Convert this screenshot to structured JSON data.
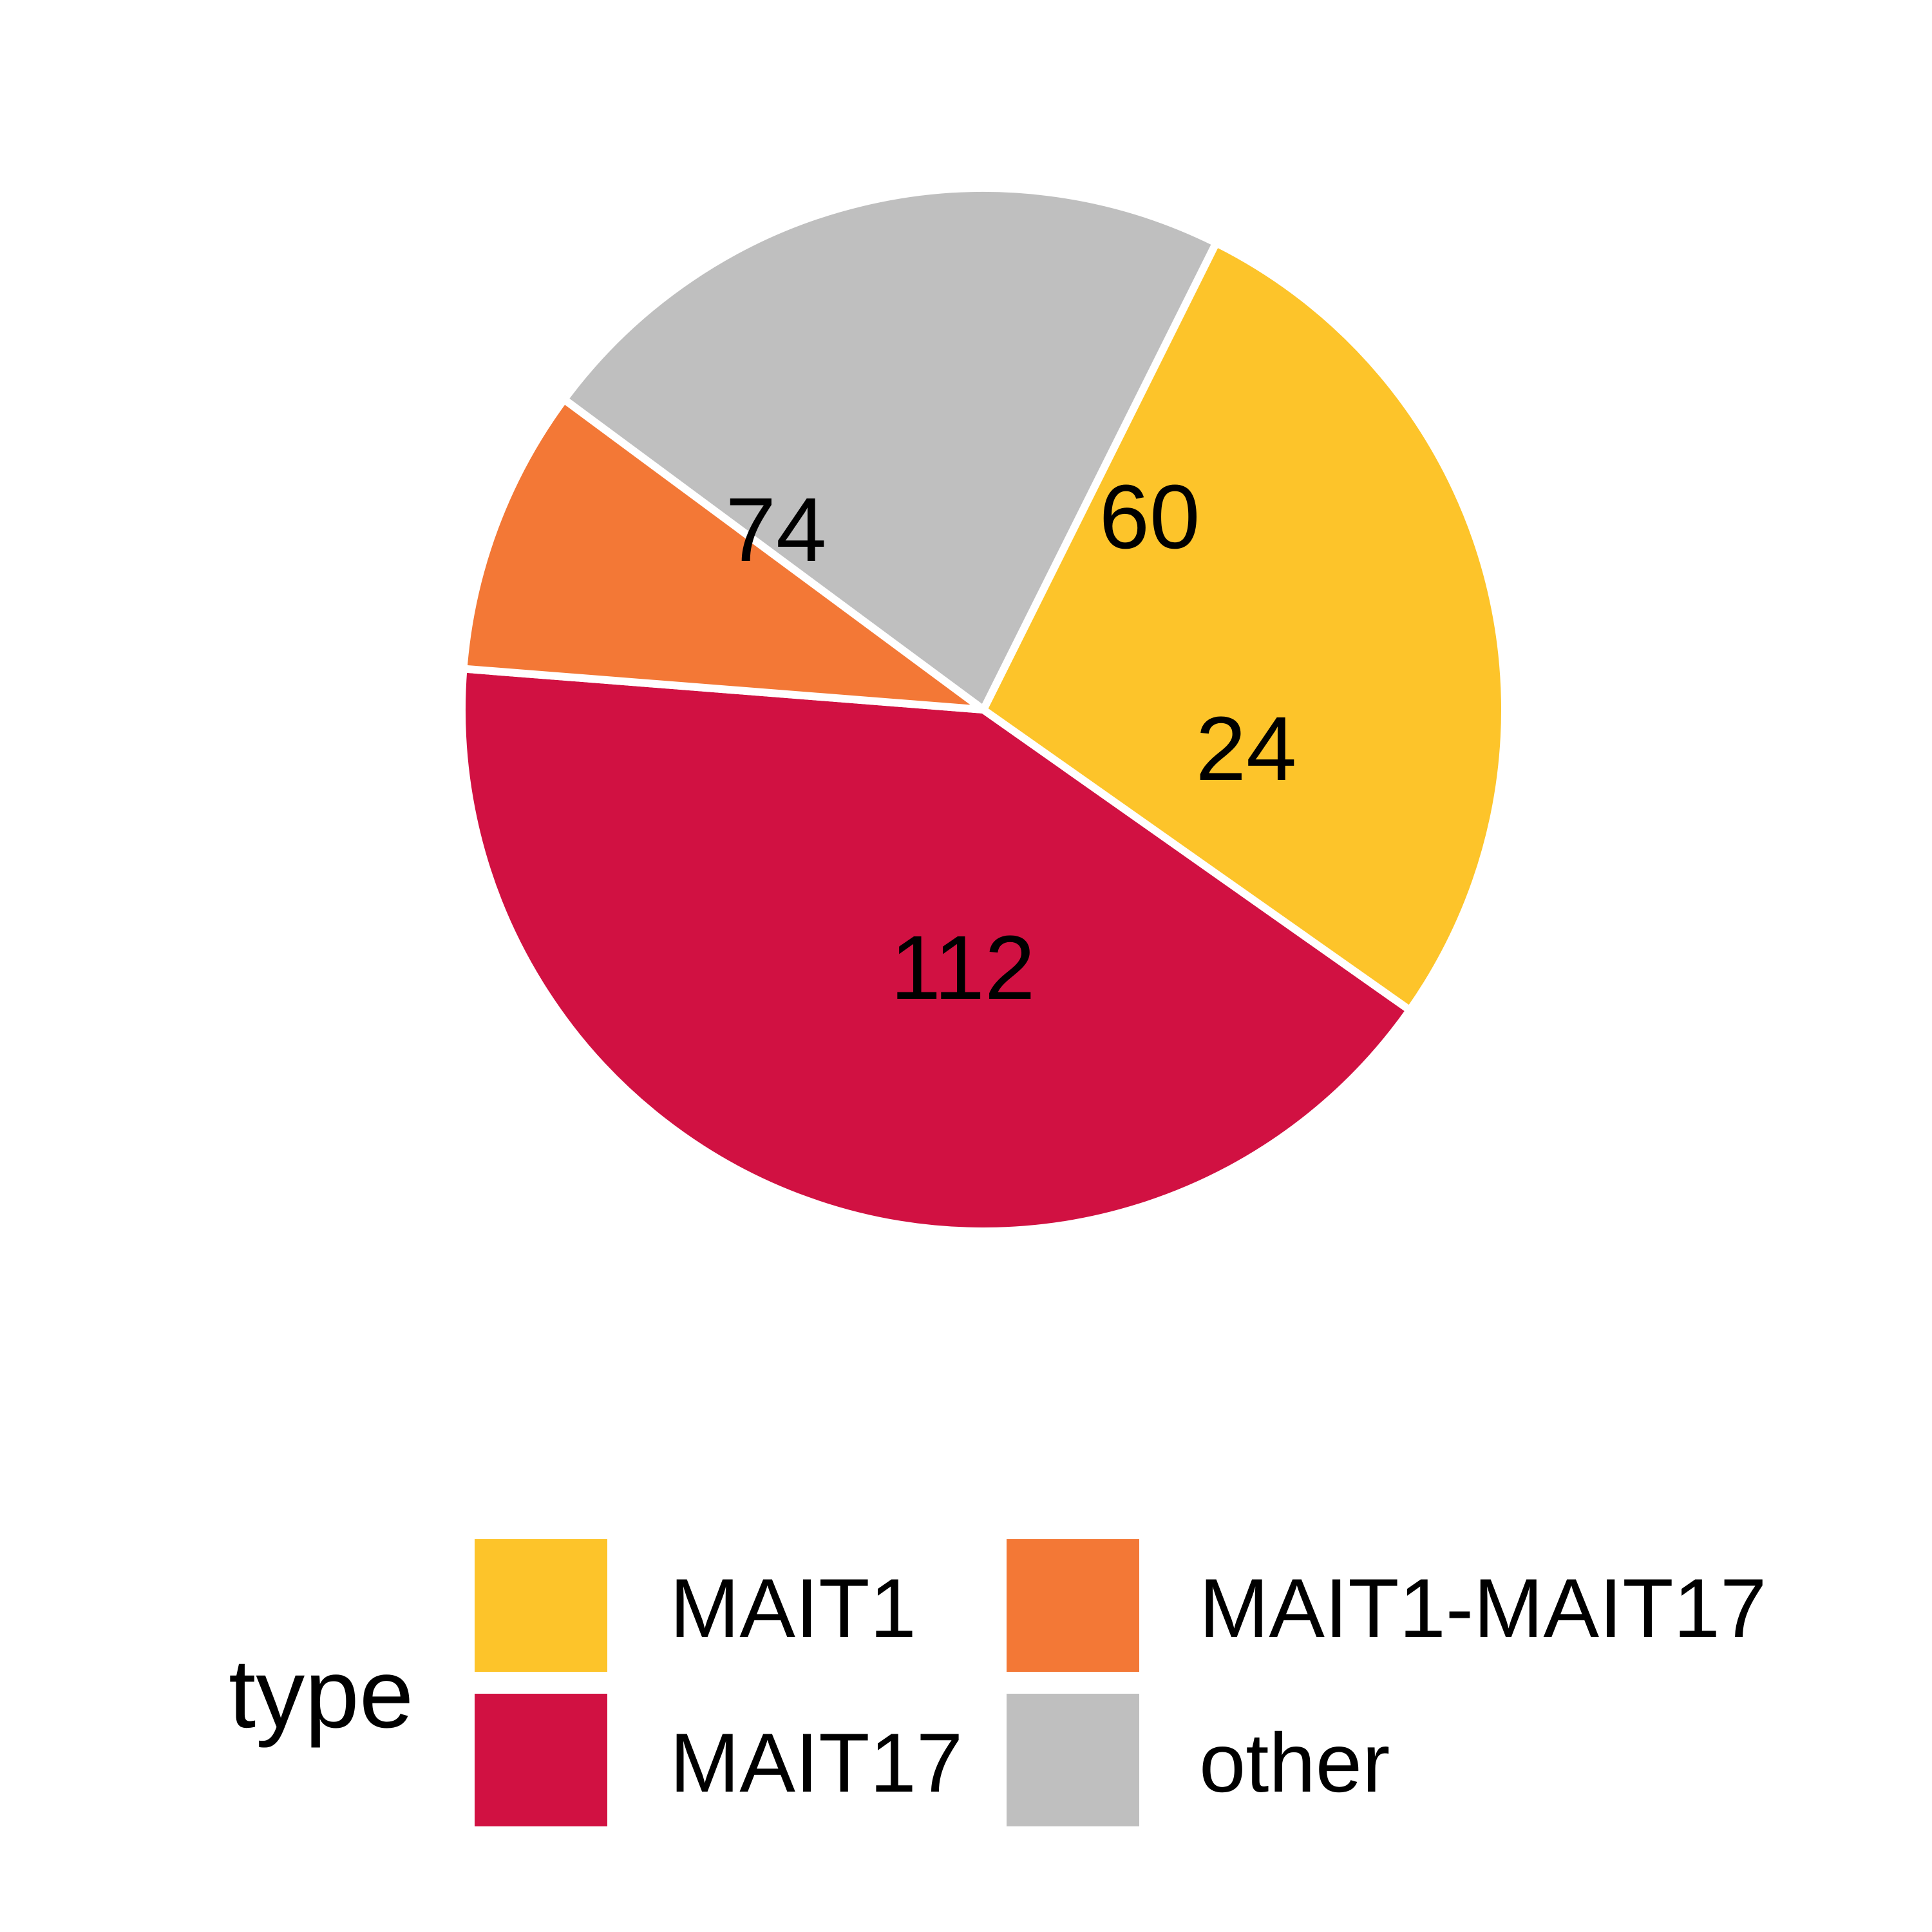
{
  "chart_data": {
    "type": "pie",
    "categories": [
      "MAIT1",
      "MAIT17",
      "MAIT1-MAIT17",
      "other"
    ],
    "values": [
      74,
      112,
      24,
      60
    ],
    "colors": [
      "#FDC42A",
      "#D11142",
      "#F37836",
      "#BFBFBF"
    ],
    "title": "",
    "legend": {
      "title": "type",
      "position": "bottom"
    }
  }
}
